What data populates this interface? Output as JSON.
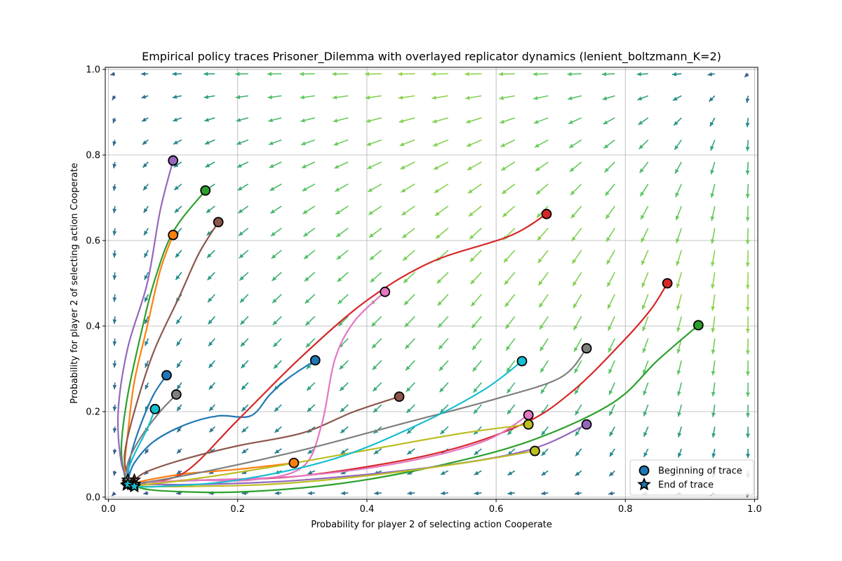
{
  "chart_data": {
    "type": "line",
    "title": "Empirical policy traces Prisoner_Dilemma with overlayed replicator dynamics (lenient_boltzmann_K=2)",
    "xlabel": "Probability for player 2 of selecting action Cooperate",
    "ylabel": "Probability for player 2 of selecting action Cooperate",
    "xlim": [
      -0.005,
      1.005
    ],
    "ylim": [
      -0.005,
      1.005
    ],
    "xticks": [
      "0.0",
      "0.2",
      "0.4",
      "0.6",
      "0.8",
      "1.0"
    ],
    "yticks": [
      "0.0",
      "0.2",
      "0.4",
      "0.6",
      "0.8",
      "1.0"
    ],
    "grid": true,
    "legend": {
      "placement": "bottom-right",
      "entries": [
        {
          "label": "Beginning of trace",
          "marker": "circle"
        },
        {
          "label": "End of trace",
          "marker": "star"
        }
      ]
    },
    "series": [
      {
        "color": "#1f77b4",
        "points": [
          [
            0.32,
            0.32
          ],
          [
            0.28,
            0.28
          ],
          [
            0.25,
            0.24
          ],
          [
            0.22,
            0.19
          ],
          [
            0.17,
            0.19
          ],
          [
            0.12,
            0.17
          ],
          [
            0.07,
            0.13
          ],
          [
            0.04,
            0.08
          ],
          [
            0.03,
            0.04
          ]
        ]
      },
      {
        "color": "#1f77b4",
        "points": [
          [
            0.09,
            0.285
          ],
          [
            0.07,
            0.24
          ],
          [
            0.05,
            0.17
          ],
          [
            0.035,
            0.1
          ],
          [
            0.03,
            0.05
          ],
          [
            0.028,
            0.028
          ]
        ]
      },
      {
        "color": "#ff7f0e",
        "points": [
          [
            0.1,
            0.613
          ],
          [
            0.08,
            0.53
          ],
          [
            0.06,
            0.4
          ],
          [
            0.04,
            0.27
          ],
          [
            0.03,
            0.15
          ],
          [
            0.025,
            0.07
          ],
          [
            0.03,
            0.035
          ]
        ]
      },
      {
        "color": "#ff7f0e",
        "points": [
          [
            0.287,
            0.08
          ],
          [
            0.2,
            0.065
          ],
          [
            0.12,
            0.055
          ],
          [
            0.06,
            0.04
          ],
          [
            0.035,
            0.03
          ]
        ]
      },
      {
        "color": "#2ca02c",
        "points": [
          [
            0.15,
            0.717
          ],
          [
            0.1,
            0.62
          ],
          [
            0.07,
            0.5
          ],
          [
            0.05,
            0.38
          ],
          [
            0.03,
            0.24
          ],
          [
            0.02,
            0.12
          ],
          [
            0.025,
            0.05
          ],
          [
            0.03,
            0.03
          ]
        ]
      },
      {
        "color": "#2ca02c",
        "points": [
          [
            0.913,
            0.402
          ],
          [
            0.85,
            0.32
          ],
          [
            0.78,
            0.22
          ],
          [
            0.65,
            0.13
          ],
          [
            0.5,
            0.07
          ],
          [
            0.35,
            0.03
          ],
          [
            0.2,
            0.012
          ],
          [
            0.08,
            0.015
          ],
          [
            0.04,
            0.025
          ]
        ]
      },
      {
        "color": "#d62728",
        "points": [
          [
            0.678,
            0.662
          ],
          [
            0.62,
            0.61
          ],
          [
            0.5,
            0.55
          ],
          [
            0.4,
            0.46
          ],
          [
            0.3,
            0.33
          ],
          [
            0.2,
            0.18
          ],
          [
            0.12,
            0.06
          ],
          [
            0.06,
            0.035
          ],
          [
            0.04,
            0.03
          ]
        ]
      },
      {
        "color": "#d62728",
        "points": [
          [
            0.865,
            0.5
          ],
          [
            0.84,
            0.44
          ],
          [
            0.8,
            0.37
          ],
          [
            0.72,
            0.25
          ],
          [
            0.64,
            0.17
          ],
          [
            0.5,
            0.1
          ],
          [
            0.3,
            0.05
          ],
          [
            0.15,
            0.04
          ],
          [
            0.06,
            0.035
          ],
          [
            0.04,
            0.03
          ]
        ]
      },
      {
        "color": "#9467bd",
        "points": [
          [
            0.1,
            0.787
          ],
          [
            0.08,
            0.67
          ],
          [
            0.06,
            0.5
          ],
          [
            0.03,
            0.35
          ],
          [
            0.015,
            0.2
          ],
          [
            0.02,
            0.08
          ],
          [
            0.035,
            0.03
          ]
        ]
      },
      {
        "color": "#9467bd",
        "points": [
          [
            0.74,
            0.17
          ],
          [
            0.65,
            0.11
          ],
          [
            0.5,
            0.07
          ],
          [
            0.3,
            0.04
          ],
          [
            0.15,
            0.03
          ],
          [
            0.06,
            0.03
          ],
          [
            0.04,
            0.03
          ]
        ]
      },
      {
        "color": "#8c564b",
        "points": [
          [
            0.17,
            0.643
          ],
          [
            0.14,
            0.57
          ],
          [
            0.11,
            0.47
          ],
          [
            0.07,
            0.34
          ],
          [
            0.04,
            0.2
          ],
          [
            0.025,
            0.1
          ],
          [
            0.03,
            0.05
          ],
          [
            0.035,
            0.03
          ]
        ]
      },
      {
        "color": "#8c564b",
        "points": [
          [
            0.45,
            0.235
          ],
          [
            0.38,
            0.2
          ],
          [
            0.3,
            0.15
          ],
          [
            0.2,
            0.12
          ],
          [
            0.12,
            0.09
          ],
          [
            0.06,
            0.06
          ],
          [
            0.04,
            0.04
          ]
        ]
      },
      {
        "color": "#e377c2",
        "points": [
          [
            0.428,
            0.48
          ],
          [
            0.38,
            0.41
          ],
          [
            0.35,
            0.32
          ],
          [
            0.33,
            0.17
          ],
          [
            0.3,
            0.07
          ],
          [
            0.22,
            0.04
          ],
          [
            0.12,
            0.04
          ],
          [
            0.06,
            0.03
          ],
          [
            0.04,
            0.03
          ]
        ]
      },
      {
        "color": "#e377c2",
        "points": [
          [
            0.65,
            0.192
          ],
          [
            0.58,
            0.13
          ],
          [
            0.45,
            0.08
          ],
          [
            0.3,
            0.05
          ],
          [
            0.15,
            0.04
          ],
          [
            0.06,
            0.035
          ],
          [
            0.04,
            0.03
          ]
        ]
      },
      {
        "color": "#7f7f7f",
        "points": [
          [
            0.105,
            0.24
          ],
          [
            0.08,
            0.2
          ],
          [
            0.05,
            0.14
          ],
          [
            0.03,
            0.08
          ],
          [
            0.03,
            0.04
          ]
        ]
      },
      {
        "color": "#7f7f7f",
        "points": [
          [
            0.74,
            0.348
          ],
          [
            0.7,
            0.28
          ],
          [
            0.6,
            0.23
          ],
          [
            0.45,
            0.17
          ],
          [
            0.3,
            0.11
          ],
          [
            0.15,
            0.06
          ],
          [
            0.06,
            0.035
          ],
          [
            0.04,
            0.03
          ]
        ]
      },
      {
        "color": "#bcbd22",
        "points": [
          [
            0.65,
            0.17
          ],
          [
            0.55,
            0.15
          ],
          [
            0.4,
            0.11
          ],
          [
            0.25,
            0.07
          ],
          [
            0.12,
            0.04
          ],
          [
            0.06,
            0.03
          ],
          [
            0.04,
            0.025
          ]
        ]
      },
      {
        "color": "#bcbd22",
        "points": [
          [
            0.66,
            0.108
          ],
          [
            0.55,
            0.08
          ],
          [
            0.4,
            0.05
          ],
          [
            0.25,
            0.03
          ],
          [
            0.12,
            0.025
          ],
          [
            0.06,
            0.025
          ],
          [
            0.04,
            0.025
          ]
        ]
      },
      {
        "color": "#17becf",
        "points": [
          [
            0.072,
            0.206
          ],
          [
            0.06,
            0.16
          ],
          [
            0.04,
            0.1
          ],
          [
            0.03,
            0.06
          ],
          [
            0.03,
            0.03
          ]
        ]
      },
      {
        "color": "#17becf",
        "points": [
          [
            0.64,
            0.318
          ],
          [
            0.58,
            0.25
          ],
          [
            0.48,
            0.17
          ],
          [
            0.35,
            0.09
          ],
          [
            0.2,
            0.04
          ],
          [
            0.08,
            0.025
          ],
          [
            0.04,
            0.025
          ]
        ]
      }
    ]
  }
}
